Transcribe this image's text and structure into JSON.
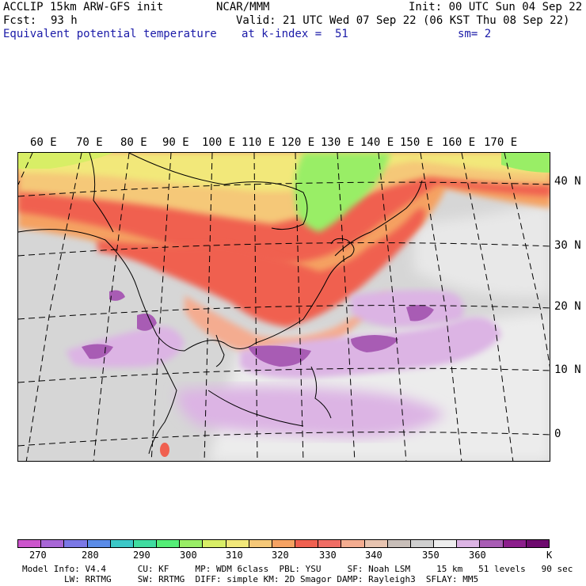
{
  "header": {
    "line1_left": "ACCLIP 15km ARW-GFS init",
    "line1_center": "NCAR/MMM",
    "line1_right": "Init: 00 UTC Sun 04 Sep 22",
    "fcst_label": "Fcst:",
    "fcst_value": "93 h",
    "valid": "Valid: 21 UTC Wed 07 Sep 22 (06 KST Thu 08 Sep 22)",
    "field": "Equivalent potential temperature",
    "level": "at k-index =  51",
    "smooth": "sm= 2"
  },
  "map": {
    "lon_labels": [
      "60 E",
      "70 E",
      "80 E",
      "90 E",
      "100 E",
      "110 E",
      "120 E",
      "130 E",
      "140 E",
      "150 E",
      "160 E",
      "170 E"
    ],
    "lat_labels": [
      "40 N",
      "30 N",
      "20 N",
      "10 N",
      "0"
    ]
  },
  "colorbar": {
    "colors": [
      "#cc55cc",
      "#a866d6",
      "#7b78e6",
      "#5a8ce8",
      "#3cc8c8",
      "#40dca0",
      "#55ee77",
      "#99ee66",
      "#d8ee66",
      "#f2e87a",
      "#f5c878",
      "#f5a262",
      "#f06050",
      "#f06c64",
      "#f4ac90",
      "#e8c4b0",
      "#c8beb8",
      "#cfcfcf",
      "#eeeeee",
      "#dcb4e4",
      "#a85cb4",
      "#8c1e8c",
      "#6e0a6e"
    ],
    "labels": [
      "270",
      "280",
      "290",
      "300",
      "310",
      "320",
      "330",
      "340",
      "350",
      "360"
    ],
    "unit": "K"
  },
  "footer": {
    "line1": "Model Info: V4.4      CU: KF     MP: WDM 6class  PBL: YSU     SF: Noah LSM     15 km   51 levels   90 sec",
    "line2": "        LW: RRTMG     SW: RRTMG  DIFF: simple KM: 2D Smagor DAMP: Rayleigh3  SFLAY: MM5"
  }
}
